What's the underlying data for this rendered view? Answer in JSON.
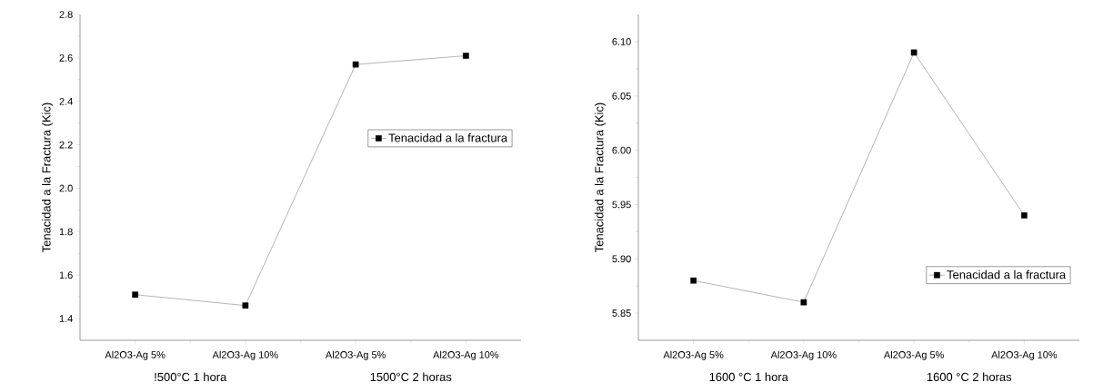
{
  "chart_data": [
    {
      "type": "line",
      "ylabel": "Tenacidad a la Fractura (Kic)",
      "categories": [
        "Al2O3-Ag 5%",
        "Al2O3-Ag 10%",
        "Al2O3-Ag 5%",
        "Al2O3-Ag 10%"
      ],
      "series": [
        {
          "name": "Tenacidad a la fractura",
          "color": "#000000",
          "values": [
            1.51,
            1.46,
            2.57,
            2.61
          ]
        }
      ],
      "ylim": [
        1.3,
        2.8
      ],
      "yticks": [
        1.4,
        1.6,
        1.8,
        {
          "value": 2.0,
          "label": "2.0"
        },
        2.2,
        2.4,
        2.6,
        2.8
      ],
      "annotations": [
        "!500°C 1 hora",
        "1500°C 2 horas"
      ],
      "legend": "right",
      "marker": "square",
      "line_style": "solid",
      "grid": false
    },
    {
      "type": "line",
      "ylabel": "Tenacidad a la Fractura (Kic)",
      "categories": [
        "Al2O3-Ag 5%",
        "Al2O3-Ag 10%",
        "Al2O3-Ag 5%",
        "Al2O3-Ag 10%"
      ],
      "series": [
        {
          "name": "Tenacidad a la fractura",
          "color": "#000000",
          "values": [
            5.88,
            5.86,
            6.09,
            5.94
          ]
        }
      ],
      "ylim": [
        5.825,
        6.125
      ],
      "yticks": [
        5.85,
        {
          "value": 5.9,
          "label": "5.90"
        },
        5.95,
        {
          "value": 6.0,
          "label": "6.00"
        },
        6.05,
        {
          "value": 6.1,
          "label": "6.10"
        }
      ],
      "annotations": [
        "1600 °C 1 hora",
        "1600 °C 2 horas"
      ],
      "legend": "bottom right",
      "marker": "square",
      "line_style": "solid",
      "grid": false
    }
  ]
}
